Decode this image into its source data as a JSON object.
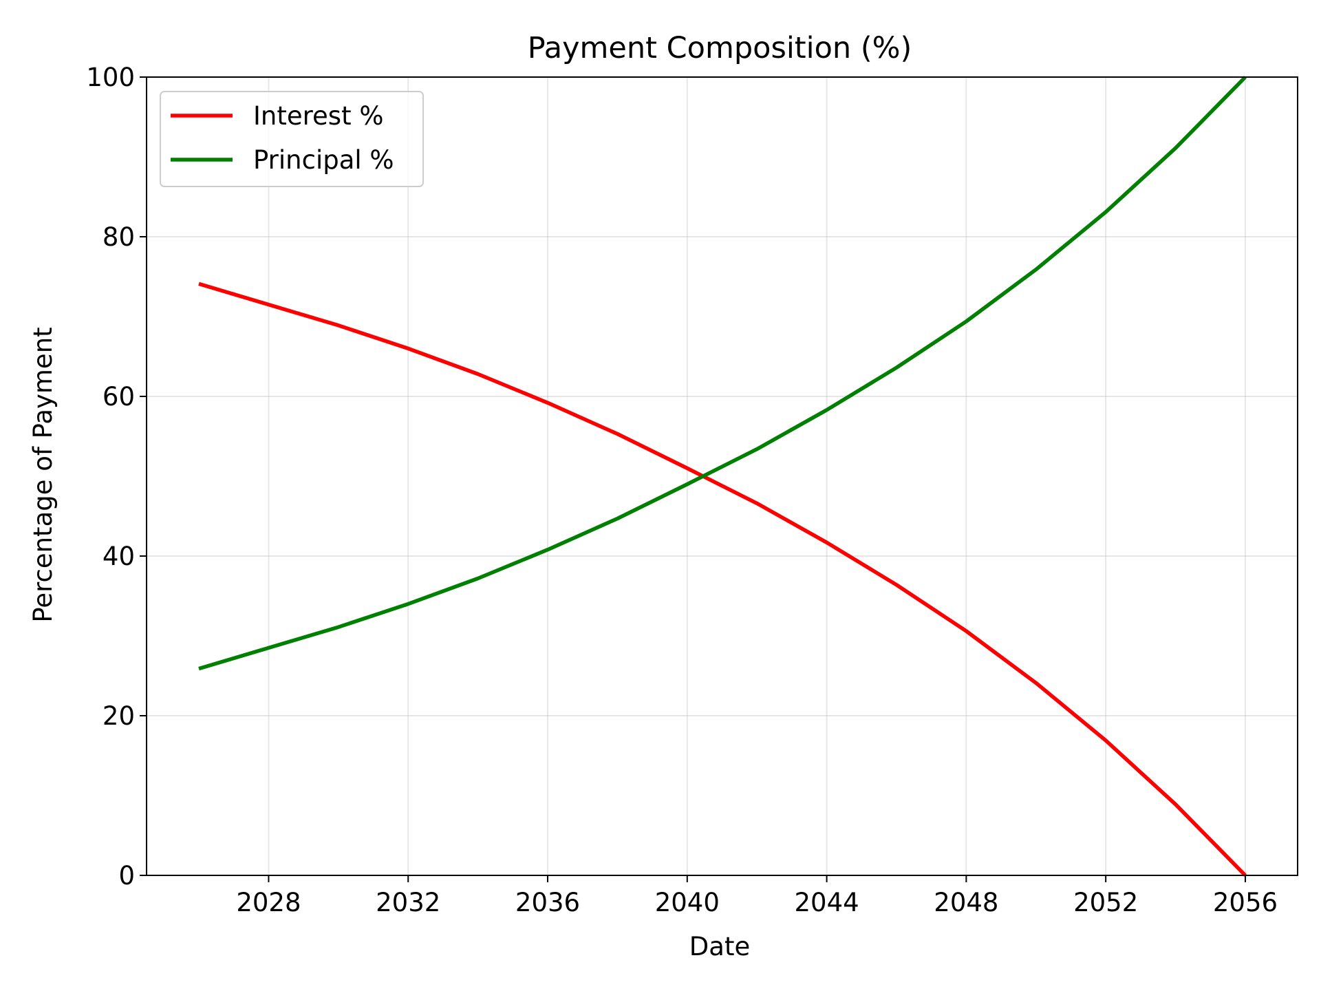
{
  "chart_data": {
    "type": "line",
    "title": "Payment Composition (%)",
    "xlabel": "Date",
    "ylabel": "Percentage of Payment",
    "x_ticks": [
      "2028",
      "2032",
      "2036",
      "2040",
      "2044",
      "2048",
      "2052",
      "2056"
    ],
    "x_tick_values": [
      2028,
      2032,
      2036,
      2040,
      2044,
      2048,
      2052,
      2056
    ],
    "y_ticks": [
      "0",
      "20",
      "40",
      "60",
      "80",
      "100"
    ],
    "y_tick_values": [
      0,
      20,
      40,
      60,
      80,
      100
    ],
    "xlim": [
      2024.5,
      2057.5
    ],
    "ylim": [
      0,
      100
    ],
    "grid": true,
    "legend_position": "upper-left",
    "x": [
      2026,
      2028,
      2030,
      2032,
      2034,
      2036,
      2038,
      2040,
      2042,
      2044,
      2046,
      2048,
      2050,
      2052,
      2054,
      2056
    ],
    "series": [
      {
        "name": "Interest %",
        "color": "#ff0000",
        "values": [
          74.1,
          71.5,
          68.9,
          66.0,
          62.8,
          59.2,
          55.3,
          51.0,
          46.6,
          41.7,
          36.4,
          30.6,
          24.1,
          16.9,
          8.9,
          0.0
        ]
      },
      {
        "name": "Principal %",
        "color": "#008000",
        "values": [
          25.9,
          28.5,
          31.1,
          34.0,
          37.2,
          40.8,
          44.7,
          49.0,
          53.4,
          58.3,
          63.6,
          69.4,
          75.9,
          83.1,
          91.1,
          100.0
        ]
      }
    ]
  }
}
